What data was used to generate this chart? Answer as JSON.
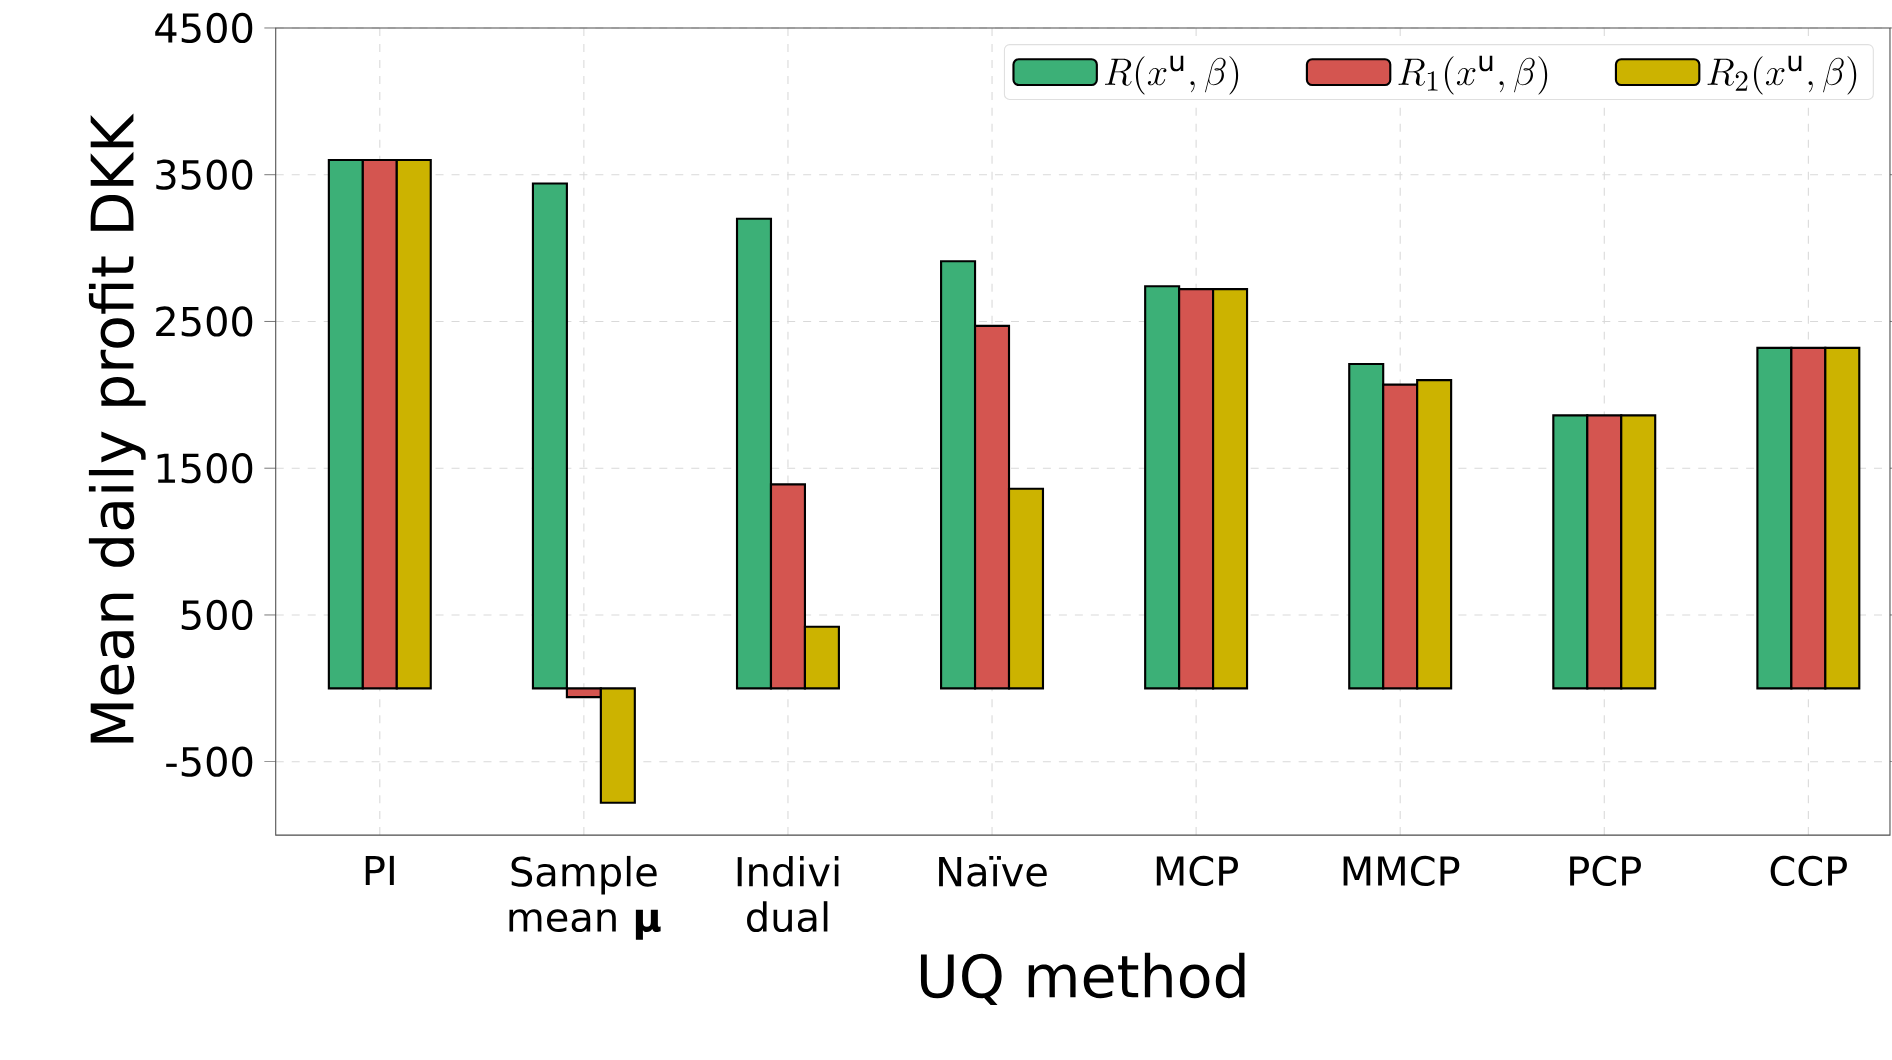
{
  "chart_data": {
    "type": "bar",
    "xlabel": "UQ method",
    "ylabel": "Mean daily profit DKK",
    "categories": [
      "PI",
      "Sample mean **μ**",
      "Indivi dual",
      "Naïve",
      "MCP",
      "MMCP",
      "PCP",
      "CCP"
    ],
    "series": [
      {
        "name": "R(x^{\\mathrm{u}}, \\beta)",
        "color": "#3cb077",
        "values": [
          3600,
          3440,
          3200,
          2910,
          2740,
          2210,
          1860,
          2320
        ]
      },
      {
        "name": "R_1(x^{\\mathrm{u}}, \\beta)",
        "color": "#d45550",
        "values": [
          3600,
          -60,
          1390,
          2470,
          2720,
          2070,
          1860,
          2320
        ]
      },
      {
        "name": "R_2(x^{\\mathrm{u}}, \\beta)",
        "color": "#ccb300",
        "values": [
          3600,
          -780,
          420,
          1360,
          2720,
          2100,
          1860,
          2320
        ]
      }
    ],
    "ylim": [
      -1000,
      4500
    ],
    "yticks": [
      -500,
      500,
      1500,
      2500,
      3500,
      4500
    ],
    "grid": true,
    "legend": "top right"
  }
}
